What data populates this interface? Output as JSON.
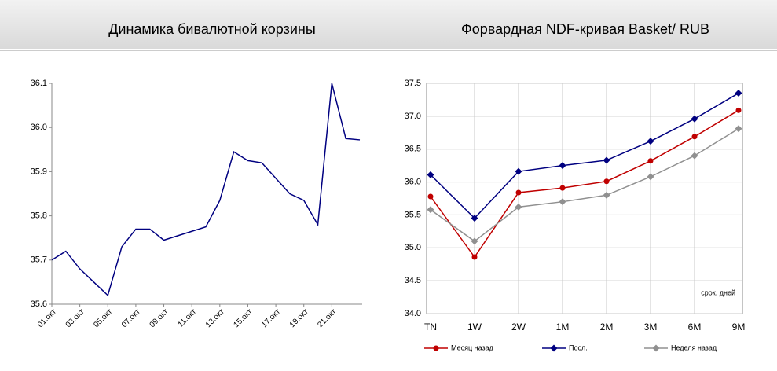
{
  "chart_data": [
    {
      "type": "line",
      "title": "Динамика бивалютной корзины",
      "categories": [
        "01.окт",
        null,
        "03.окт",
        null,
        "05.окт",
        null,
        "07.окт",
        null,
        "09.окт",
        null,
        "11.окт",
        null,
        "13.окт",
        null,
        "15.окт",
        null,
        "17.окт",
        null,
        "19.окт",
        null,
        "21.окт",
        null,
        null
      ],
      "values": [
        35.7,
        35.72,
        35.68,
        35.65,
        35.62,
        35.73,
        35.77,
        35.77,
        35.745,
        35.755,
        35.765,
        35.775,
        35.835,
        35.945,
        35.925,
        35.92,
        35.885,
        35.85,
        35.835,
        35.78,
        36.1,
        35.975,
        35.972
      ],
      "color": "#000080",
      "ylim": [
        35.6,
        36.1
      ],
      "yticks": [
        35.6,
        35.7,
        35.8,
        35.9,
        {
          "value": 36.0,
          "label": "36.0"
        },
        36.1
      ],
      "grid": false
    },
    {
      "type": "line",
      "title": "Форвардная NDF-кривая Basket/ RUB",
      "categories": [
        "TN",
        "1W",
        "2W",
        "1M",
        "2M",
        "3M",
        "6M",
        "9M"
      ],
      "series": [
        {
          "name": "Месяц назад",
          "color": "#c00000",
          "marker": "circle",
          "values": [
            35.78,
            34.86,
            35.84,
            35.91,
            36.01,
            36.32,
            36.69,
            37.09
          ]
        },
        {
          "name": "Посл.",
          "color": "#000080",
          "marker": "diamond",
          "values": [
            36.11,
            35.45,
            36.16,
            36.25,
            36.33,
            36.62,
            36.96,
            37.35
          ]
        },
        {
          "name": "Неделя назад",
          "color": "#909090",
          "marker": "diamond",
          "values": [
            35.58,
            35.1,
            35.62,
            35.7,
            35.8,
            36.08,
            36.4,
            36.81
          ]
        }
      ],
      "annotation": "срок, дней",
      "ylim": [
        34.0,
        37.5
      ],
      "yticks": [
        {
          "value": 34.0,
          "label": "34.0"
        },
        34.5,
        {
          "value": 35.0,
          "label": "35.0"
        },
        35.5,
        {
          "value": 36.0,
          "label": "36.0"
        },
        36.5,
        {
          "value": 37.0,
          "label": "37.0"
        },
        37.5
      ],
      "grid": true
    }
  ]
}
